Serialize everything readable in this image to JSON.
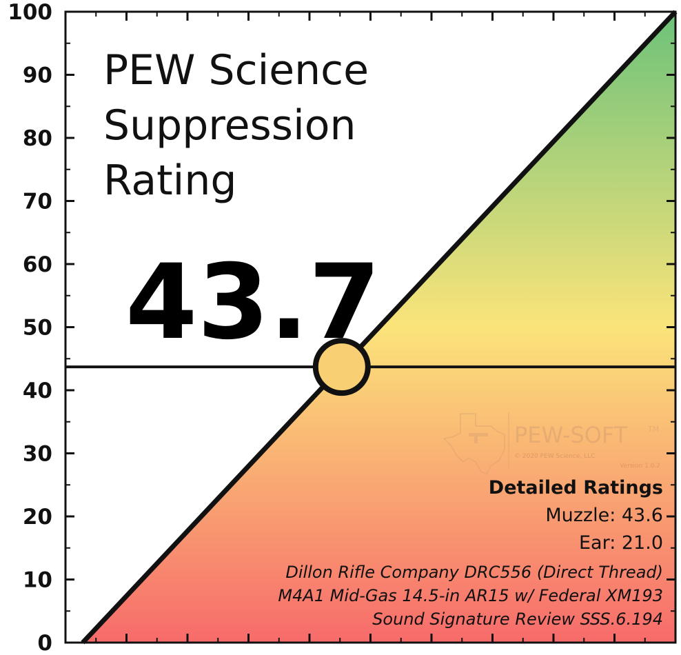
{
  "chart_data": {
    "type": "scatter",
    "title_lines": [
      "PEW Science",
      "Suppression",
      "Rating"
    ],
    "score": "43.7",
    "rating_value": 43.7,
    "xlim": [
      0,
      100
    ],
    "ylim": [
      0,
      100
    ],
    "y_ticks": [
      0,
      10,
      20,
      30,
      40,
      50,
      60,
      70,
      80,
      90,
      100
    ],
    "y_tick_labels": [
      "0",
      "10",
      "20",
      "30",
      "40",
      "50",
      "60",
      "70",
      "80",
      "90",
      "100"
    ],
    "x_ticks": [
      0,
      10,
      20,
      30,
      40,
      50,
      60,
      70,
      80,
      90,
      100
    ],
    "x_tick_labels": [],
    "diagonal": [
      [
        0,
        0
      ],
      [
        100,
        100
      ]
    ],
    "horizontal_line_y": 43.7,
    "marker": {
      "x": 43.7,
      "y": 43.7
    },
    "gradient_colors": {
      "bottom": "#f76b6b",
      "middle": "#fbe47a",
      "top": "#6cc27a"
    },
    "marker_color": "#f8cf72",
    "grid": false,
    "detailed_ratings": {
      "heading": "Detailed Ratings",
      "muzzle": "Muzzle: 43.6",
      "ear": "Ear: 21.0"
    },
    "review_lines": [
      "Dillon Rifle Company DRC556 (Direct Thread)",
      "M4A1 Mid-Gas 14.5-in AR15 w/ Federal XM193",
      "Sound Signature Review SSS.6.194"
    ]
  },
  "watermark": {
    "brand": "PEW-SOFT",
    "trademark": "TM",
    "copyright": "© 2020 PEW Science, LLC",
    "version": "Version 1.0.2"
  }
}
